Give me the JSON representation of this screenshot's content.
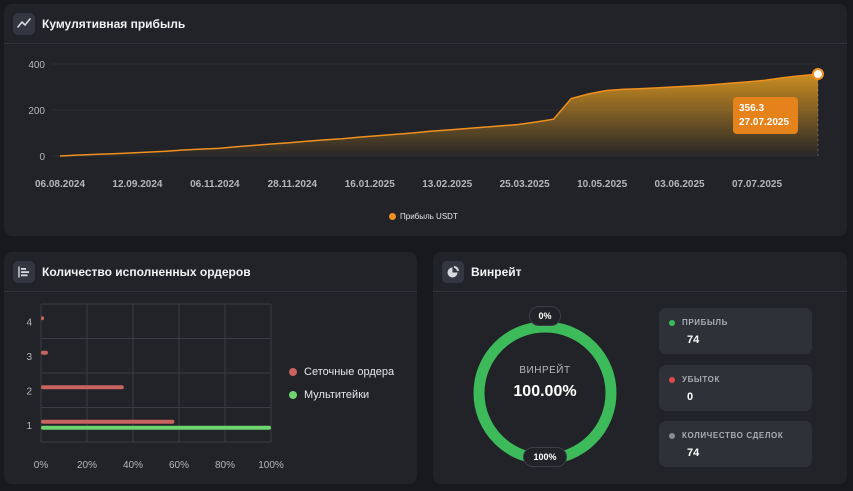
{
  "profit_card": {
    "title": "Кумулятивная прибыль",
    "tooltip": {
      "value": "356.3",
      "date": "27.07.2025"
    },
    "legend": "Прибыль USDT"
  },
  "orders_card": {
    "title": "Количество исполненных ордеров",
    "legend": [
      "Сеточные ордера",
      "Мультитейки"
    ]
  },
  "winrate_card": {
    "title": "Винрейт",
    "center_label": "ВИНРЕЙТ",
    "center_value": "100.00%",
    "top_pill": "0%",
    "bottom_pill": "100%",
    "stats": [
      {
        "label": "ПРИБЫЛЬ",
        "value": "74",
        "color": "#3dbb5a"
      },
      {
        "label": "УБЫТОК",
        "value": "0",
        "color": "#e04848"
      },
      {
        "label": "КОЛИЧЕСТВО СДЕЛОК",
        "value": "74",
        "color": "#8a8d94"
      }
    ],
    "ring_color": "#3dbb5a",
    "win_fraction": 1.0
  },
  "chart_data": [
    {
      "type": "area",
      "title": "Кумулятивная прибыль",
      "ylim": [
        0,
        400
      ],
      "yticks": [
        "400",
        "200",
        "0"
      ],
      "xticks": [
        "06.08.2024",
        "12.09.2024",
        "06.11.2024",
        "28.11.2024",
        "16.01.2025",
        "13.02.2025",
        "25.03.2025",
        "10.05.2025",
        "03.06.2025",
        "07.07.2025"
      ],
      "series": [
        {
          "name": "Прибыль USDT",
          "color": "#f0901e",
          "values": [
            0,
            4,
            7,
            10,
            13,
            17,
            21,
            26,
            30,
            33,
            40,
            46,
            52,
            58,
            64,
            70,
            75,
            82,
            88,
            94,
            100,
            108,
            113,
            119,
            125,
            131,
            137,
            148,
            160,
            250,
            270,
            285,
            290,
            293,
            297,
            301,
            305,
            310,
            316,
            322,
            329,
            340,
            349,
            356.3
          ]
        }
      ],
      "grid": false,
      "legend": "bottom-center"
    },
    {
      "type": "bar",
      "orientation": "horizontal",
      "title": "Количество исполненных ордеров",
      "categories": [
        "1",
        "2",
        "3",
        "4"
      ],
      "xticks": [
        "0%",
        "20%",
        "40%",
        "60%",
        "80%",
        "100%"
      ],
      "xlim": [
        0,
        100
      ],
      "series": [
        {
          "name": "Сеточные ордера",
          "color": "#c9635f",
          "values": [
            58,
            36,
            3,
            0.5
          ]
        },
        {
          "name": "Мультитейки",
          "color": "#6fd46f",
          "values": [
            100,
            0,
            0,
            0
          ]
        }
      ],
      "grid": true,
      "legend": "right"
    }
  ]
}
